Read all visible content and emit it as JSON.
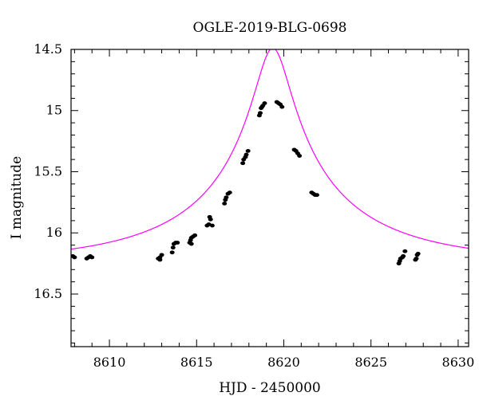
{
  "chart_data": {
    "type": "scatter",
    "title": "OGLE-2019-BLG-0698",
    "xlabel": "HJD - 2450000",
    "ylabel": "I magnitude",
    "xlim": [
      8607.8,
      8630.6
    ],
    "ylim": [
      16.93,
      14.5
    ],
    "y_inverted": true,
    "grid": false,
    "xticks": [
      8610,
      8615,
      8620,
      8625,
      8630
    ],
    "xtick_labels": [
      "8610",
      "8615",
      "8620",
      "8625",
      "8630"
    ],
    "x_minor_step": 1,
    "yticks": [
      14.5,
      15,
      15.5,
      16,
      16.5
    ],
    "ytick_labels": [
      "14.5",
      "15",
      "15.5",
      "16",
      "16.5"
    ],
    "y_minor_step": 0.1,
    "colors": {
      "points": "#000000",
      "model": "#ff00ff"
    },
    "series": [
      {
        "kind": "points",
        "points": [
          [
            8607.9,
            16.19
          ],
          [
            8608.0,
            16.2
          ],
          [
            8608.7,
            16.21
          ],
          [
            8608.8,
            16.2
          ],
          [
            8608.9,
            16.19
          ],
          [
            8609.0,
            16.2
          ],
          [
            8612.8,
            16.21
          ],
          [
            8612.9,
            16.2
          ],
          [
            8613.0,
            16.18
          ],
          [
            8612.9,
            16.22
          ],
          [
            8613.6,
            16.16
          ],
          [
            8613.65,
            16.12
          ],
          [
            8613.7,
            16.09
          ],
          [
            8613.8,
            16.08
          ],
          [
            8613.9,
            16.08
          ],
          [
            8614.6,
            16.08
          ],
          [
            8614.65,
            16.06
          ],
          [
            8614.7,
            16.04
          ],
          [
            8614.8,
            16.03
          ],
          [
            8614.9,
            16.02
          ],
          [
            8614.7,
            16.09
          ],
          [
            8615.6,
            15.94
          ],
          [
            8615.7,
            15.93
          ],
          [
            8615.75,
            15.87
          ],
          [
            8615.8,
            15.89
          ],
          [
            8615.9,
            15.94
          ],
          [
            8616.6,
            15.76
          ],
          [
            8616.65,
            15.73
          ],
          [
            8616.7,
            15.71
          ],
          [
            8616.8,
            15.68
          ],
          [
            8616.9,
            15.67
          ],
          [
            8617.65,
            15.43
          ],
          [
            8617.7,
            15.4
          ],
          [
            8617.8,
            15.38
          ],
          [
            8617.85,
            15.36
          ],
          [
            8617.95,
            15.33
          ],
          [
            8618.6,
            15.04
          ],
          [
            8618.65,
            15.02
          ],
          [
            8618.7,
            14.98
          ],
          [
            8618.75,
            14.97
          ],
          [
            8618.8,
            14.96
          ],
          [
            8618.9,
            14.94
          ],
          [
            8619.6,
            14.93
          ],
          [
            8619.7,
            14.94
          ],
          [
            8619.8,
            14.95
          ],
          [
            8619.9,
            14.97
          ],
          [
            8620.6,
            15.32
          ],
          [
            8620.7,
            15.33
          ],
          [
            8620.8,
            15.35
          ],
          [
            8620.9,
            15.37
          ],
          [
            8621.6,
            15.67
          ],
          [
            8621.7,
            15.68
          ],
          [
            8621.8,
            15.69
          ],
          [
            8621.9,
            15.69
          ],
          [
            8626.6,
            16.25
          ],
          [
            8626.65,
            16.23
          ],
          [
            8626.7,
            16.21
          ],
          [
            8626.8,
            16.2
          ],
          [
            8626.85,
            16.19
          ],
          [
            8626.95,
            16.15
          ],
          [
            8627.55,
            16.22
          ],
          [
            8627.6,
            16.21
          ],
          [
            8627.65,
            16.18
          ],
          [
            8627.7,
            16.17
          ]
        ]
      },
      {
        "kind": "model",
        "model": {
          "t0": 8619.37,
          "u0": 0.095,
          "tE": 10.0,
          "i_base": 16.24,
          "fs": 0.42
        }
      }
    ]
  }
}
